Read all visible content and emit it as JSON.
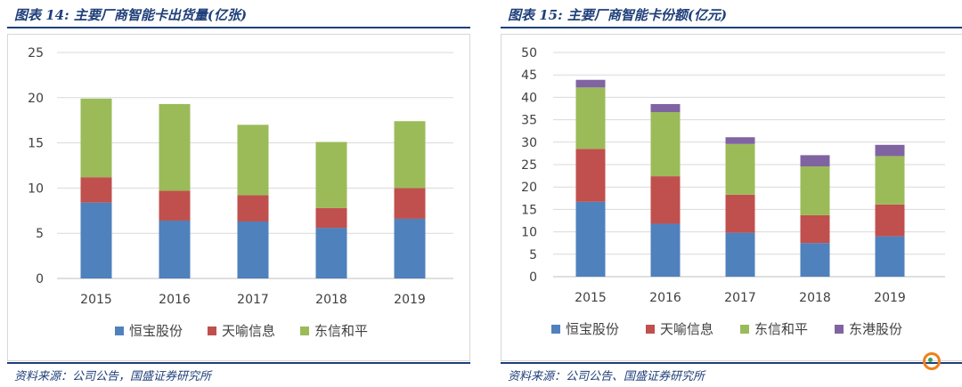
{
  "left": {
    "title": "图表 14:  主要厂商智能卡出货量(亿张)",
    "source": "资料来源：公司公告，国盛证券研究所"
  },
  "right": {
    "title": "图表 15:  主要厂商智能卡份额(亿元)",
    "source": "资料来源：公司公告、国盛证券研究所"
  },
  "colors": {
    "恒宝股份": "#4f81bd",
    "天喻信息": "#c0504d",
    "东信和平": "#9bbb59",
    "东港股份": "#8064a2"
  },
  "chart_data": [
    {
      "type": "bar",
      "stacked": true,
      "categories": [
        "2015",
        "2016",
        "2017",
        "2018",
        "2019"
      ],
      "series": [
        {
          "name": "恒宝股份",
          "values": [
            8.4,
            6.4,
            6.3,
            5.6,
            6.6
          ]
        },
        {
          "name": "天喻信息",
          "values": [
            2.8,
            3.3,
            2.9,
            2.2,
            3.4
          ]
        },
        {
          "name": "东信和平",
          "values": [
            8.7,
            9.6,
            7.8,
            7.3,
            7.4
          ]
        }
      ],
      "ylim": [
        0,
        25
      ],
      "yticks": [
        0,
        5,
        10,
        15,
        20,
        25
      ],
      "grid": true,
      "legend": "bottom"
    },
    {
      "type": "bar",
      "stacked": true,
      "categories": [
        "2015",
        "2016",
        "2017",
        "2018",
        "2019"
      ],
      "series": [
        {
          "name": "恒宝股份",
          "values": [
            16.7,
            11.8,
            9.8,
            7.5,
            9.0
          ]
        },
        {
          "name": "天喻信息",
          "values": [
            11.8,
            10.6,
            8.5,
            6.2,
            7.1
          ]
        },
        {
          "name": "东信和平",
          "values": [
            13.7,
            14.3,
            11.3,
            10.9,
            10.8
          ]
        },
        {
          "name": "东港股份",
          "values": [
            1.7,
            1.8,
            1.5,
            2.5,
            2.5
          ]
        }
      ],
      "ylim": [
        0,
        50
      ],
      "yticks": [
        0,
        5,
        10,
        15,
        20,
        25,
        30,
        35,
        40,
        45,
        50
      ],
      "grid": true,
      "legend": "bottom"
    }
  ]
}
